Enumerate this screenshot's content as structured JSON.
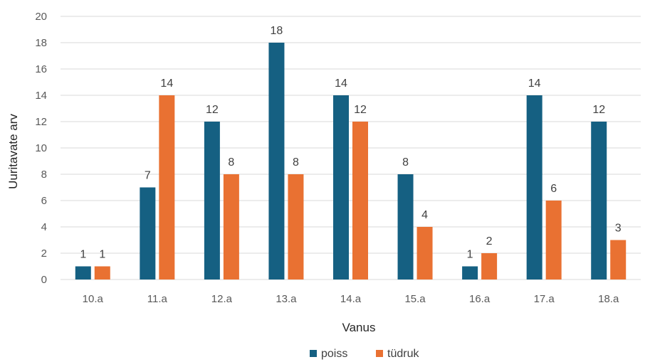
{
  "chart_data": {
    "type": "bar",
    "xlabel": "Vanus",
    "ylabel": "Uuritavate arv",
    "ylim": [
      0,
      20
    ],
    "yticks": [
      0,
      2,
      4,
      6,
      8,
      10,
      12,
      14,
      16,
      18,
      20
    ],
    "grid": true,
    "legend_position": "bottom",
    "categories": [
      "10.a",
      "11.a",
      "12.a",
      "13.a",
      "14.a",
      "15.a",
      "16.a",
      "17.a",
      "18.a"
    ],
    "series": [
      {
        "name": "poiss",
        "color": "#156082",
        "values": [
          1,
          7,
          12,
          18,
          14,
          8,
          1,
          14,
          12
        ]
      },
      {
        "name": "tüdruk",
        "color": "#E97132",
        "values": [
          1,
          14,
          8,
          8,
          12,
          4,
          2,
          6,
          3
        ]
      }
    ]
  }
}
